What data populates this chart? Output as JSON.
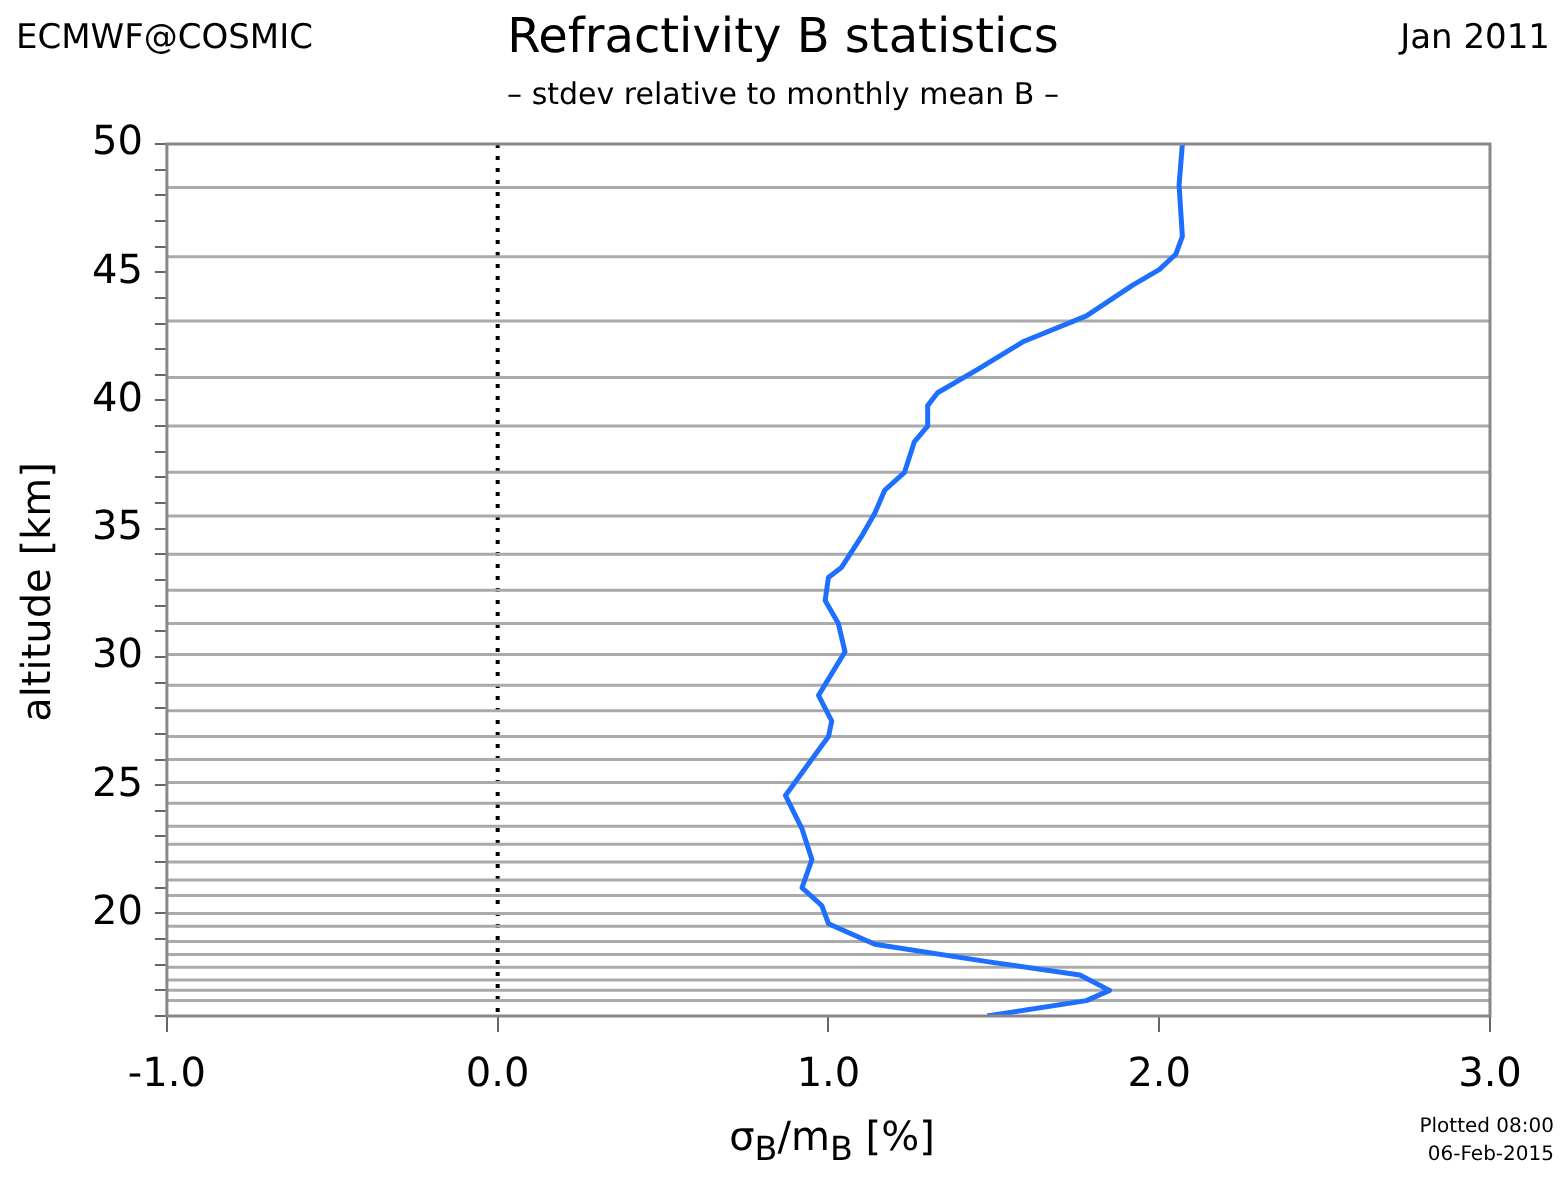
{
  "chart_data": {
    "type": "line",
    "title": "Refractivity B statistics",
    "subtitle": "– stdev relative to monthly mean B –",
    "xlabel": "σ$_{B}$/m$_{B}$ [%]",
    "ylabel": "altitude [km]",
    "annotations": [
      "ECMWF@COSMIC",
      "Jan 2011",
      "Plotted 08:00",
      "06-Feb-2015"
    ],
    "series": [
      {
        "color": "#1f6fff",
        "x": [
          2.07,
          2.06,
          2.07,
          2.05,
          2.0,
          1.92,
          1.78,
          1.59,
          1.45,
          1.33,
          1.3,
          1.3,
          1.26,
          1.23,
          1.17,
          1.14,
          1.1,
          1.04,
          1.0,
          0.99,
          1.03,
          1.05,
          0.97,
          1.01,
          1.0,
          0.87,
          0.92,
          0.95,
          0.92,
          0.98,
          1.0,
          1.14,
          1.49,
          1.76,
          1.85,
          1.78,
          1.48
        ],
        "values": [
          50,
          48.4,
          46.4,
          45.7,
          45.1,
          44.5,
          43.3,
          42.3,
          41.2,
          40.3,
          39.8,
          39,
          38.4,
          37.2,
          36.5,
          35.6,
          34.7,
          33.5,
          33.1,
          32.2,
          31.3,
          30.2,
          28.5,
          27.5,
          26.9,
          24.6,
          23.3,
          22.1,
          21,
          20.3,
          19.6,
          18.8,
          18.1,
          17.6,
          17,
          16.6,
          16
        ]
      }
    ],
    "xlim": [
      -1,
      3
    ],
    "xticks": [
      {
        "value": -1,
        "label": "-1.0"
      },
      {
        "value": 0,
        "label": "0.0"
      },
      {
        "value": 1,
        "label": "1.0"
      },
      {
        "value": 2,
        "label": "2.0"
      },
      {
        "value": 3,
        "label": "3.0"
      }
    ],
    "ylim": [
      16,
      50
    ],
    "yticks": [
      {
        "value": 16,
        "label": null
      },
      {
        "value": 17,
        "label": null
      },
      {
        "value": 18,
        "label": null
      },
      {
        "value": 19,
        "label": null
      },
      20,
      {
        "value": 21,
        "label": null
      },
      {
        "value": 22,
        "label": null
      },
      {
        "value": 23,
        "label": null
      },
      {
        "value": 24,
        "label": null
      },
      25,
      {
        "value": 26,
        "label": null
      },
      {
        "value": 27,
        "label": null
      },
      {
        "value": 28,
        "label": null
      },
      {
        "value": 29,
        "label": null
      },
      30,
      {
        "value": 31,
        "label": null
      },
      {
        "value": 32,
        "label": null
      },
      {
        "value": 33,
        "label": null
      },
      {
        "value": 34,
        "label": null
      },
      35,
      {
        "value": 36,
        "label": null
      },
      {
        "value": 37,
        "label": null
      },
      {
        "value": 38,
        "label": null
      },
      {
        "value": 39,
        "label": null
      },
      40,
      {
        "value": 41,
        "label": null
      },
      {
        "value": 42,
        "label": null
      },
      {
        "value": 43,
        "label": null
      },
      {
        "value": 44,
        "label": null
      },
      45,
      {
        "value": 46,
        "label": null
      },
      {
        "value": 47,
        "label": null
      },
      {
        "value": 48,
        "label": null
      },
      {
        "value": 49,
        "label": null
      },
      50
    ],
    "grid": false,
    "legend": false,
    "marker": "none",
    "line_style": "solid",
    "ref_lines": [
      {
        "axis": "x",
        "value": 0,
        "color": "#000000",
        "line_style": "dotted"
      },
      {
        "axis": "y",
        "value": 48.3,
        "color": "#aaaaaa"
      },
      {
        "axis": "y",
        "value": 45.6,
        "color": "#aaaaaa"
      },
      {
        "axis": "y",
        "value": 43.1,
        "color": "#aaaaaa"
      },
      {
        "axis": "y",
        "value": 40.9,
        "color": "#aaaaaa"
      },
      {
        "axis": "y",
        "value": 39,
        "color": "#aaaaaa"
      },
      {
        "axis": "y",
        "value": 37.2,
        "color": "#aaaaaa"
      },
      {
        "axis": "y",
        "value": 35.5,
        "color": "#aaaaaa"
      },
      {
        "axis": "y",
        "value": 34,
        "color": "#aaaaaa"
      },
      {
        "axis": "y",
        "value": 32.6,
        "color": "#aaaaaa"
      },
      {
        "axis": "y",
        "value": 31.3,
        "color": "#aaaaaa"
      },
      {
        "axis": "y",
        "value": 30.1,
        "color": "#aaaaaa"
      },
      {
        "axis": "y",
        "value": 28.9,
        "color": "#aaaaaa"
      },
      {
        "axis": "y",
        "value": 27.9,
        "color": "#aaaaaa"
      },
      {
        "axis": "y",
        "value": 26.9,
        "color": "#aaaaaa"
      },
      {
        "axis": "y",
        "value": 26,
        "color": "#aaaaaa"
      },
      {
        "axis": "y",
        "value": 25.1,
        "color": "#aaaaaa"
      },
      {
        "axis": "y",
        "value": 24.3,
        "color": "#aaaaaa"
      },
      {
        "axis": "y",
        "value": 23.4,
        "color": "#aaaaaa"
      },
      {
        "axis": "y",
        "value": 22.7,
        "color": "#aaaaaa"
      },
      {
        "axis": "y",
        "value": 22,
        "color": "#aaaaaa"
      },
      {
        "axis": "y",
        "value": 21.3,
        "color": "#aaaaaa"
      },
      {
        "axis": "y",
        "value": 20.7,
        "color": "#aaaaaa"
      },
      {
        "axis": "y",
        "value": 20,
        "color": "#aaaaaa"
      },
      {
        "axis": "y",
        "value": 19.5,
        "color": "#aaaaaa"
      },
      {
        "axis": "y",
        "value": 18.9,
        "color": "#aaaaaa"
      },
      {
        "axis": "y",
        "value": 18.4,
        "color": "#aaaaaa"
      },
      {
        "axis": "y",
        "value": 17.9,
        "color": "#aaaaaa"
      },
      {
        "axis": "y",
        "value": 17.4,
        "color": "#aaaaaa"
      },
      {
        "axis": "y",
        "value": 17,
        "color": "#aaaaaa"
      },
      {
        "axis": "y",
        "value": 16.6,
        "color": "#aaaaaa"
      }
    ]
  }
}
